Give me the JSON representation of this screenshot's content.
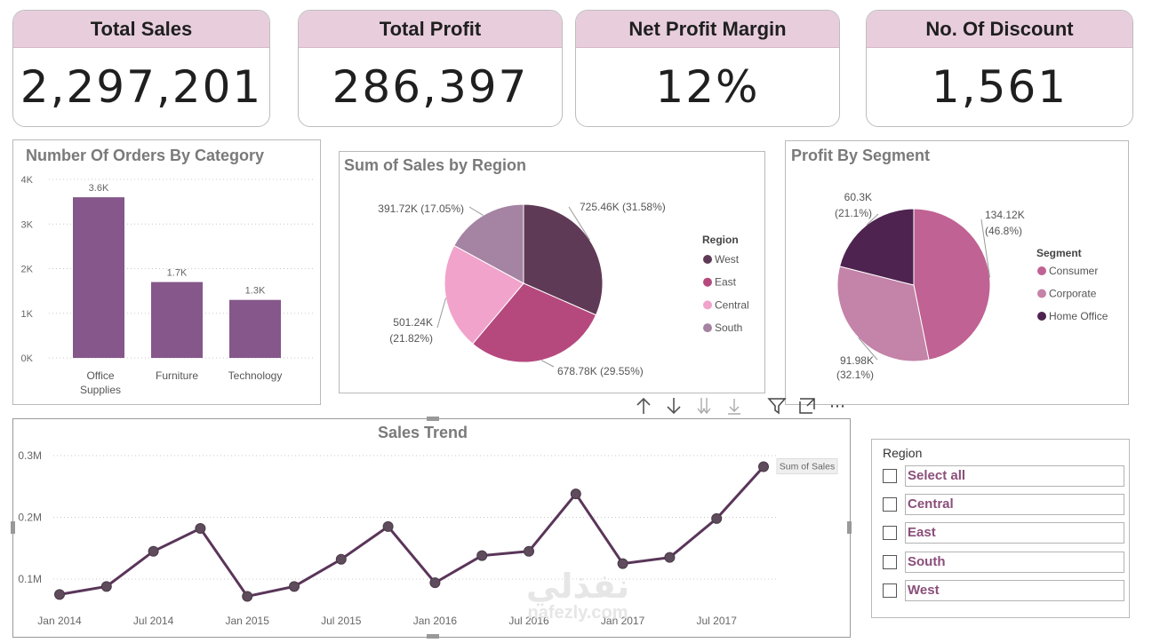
{
  "kpis": [
    {
      "title": "Total Sales",
      "value": "2,297,201"
    },
    {
      "title": "Total Profit",
      "value": "286,397"
    },
    {
      "title": "Net Profit Margin",
      "value": "12%"
    },
    {
      "title": "No. Of Discount",
      "value": "1,561"
    }
  ],
  "orders_panel": {
    "title": "Number Of Orders By Category"
  },
  "sales_region_panel": {
    "title": "Sum of Sales by Region",
    "legend_title": "Region"
  },
  "profit_segment_panel": {
    "title": "Profit By Segment",
    "legend_title": "Segment"
  },
  "trend_panel": {
    "title": "Sales Trend",
    "tooltip": "Sum of Sales"
  },
  "slicer": {
    "title": "Region",
    "items": [
      "Select all",
      "Central",
      "East",
      "South",
      "West"
    ]
  },
  "toolbar": {
    "icons": [
      "arrow-up-icon",
      "arrow-down-icon",
      "double-arrow-down-icon",
      "expand-down-icon",
      "filter-icon",
      "focus-mode-icon",
      "more-options-icon"
    ],
    "more_glyph": "⋯"
  },
  "watermark": {
    "line1": "نفذلي",
    "line2": "nafezly.com"
  },
  "colors": {
    "accent": "#85578a",
    "kpi_header": "#e8cedd",
    "west": "#5f3a56",
    "east": "#b5497e",
    "central": "#f1a3cb",
    "south": "#a583a3",
    "consumer": "#c06293",
    "corporate": "#c483a8",
    "home_office": "#4e2350",
    "line": "#5a3559"
  },
  "chart_data": [
    {
      "type": "bar",
      "title": "Number Of Orders By Category",
      "categories": [
        "Office Supplies",
        "Furniture",
        "Technology"
      ],
      "category_lines": [
        [
          "Office",
          "Supplies"
        ],
        [
          "Furniture"
        ],
        [
          "Technology"
        ]
      ],
      "values": [
        3.6,
        1.7,
        1.3
      ],
      "data_labels": [
        "3.6K",
        "1.7K",
        "1.3K"
      ],
      "y_ticks": [
        "0K",
        "1K",
        "2K",
        "3K",
        "4K"
      ],
      "ylim": [
        0,
        4
      ],
      "grid": true
    },
    {
      "type": "pie",
      "title": "Sum of Sales by Region",
      "legend_title": "Region",
      "legend_position": "right",
      "slices": [
        {
          "name": "West",
          "value": 725.46,
          "percent": 31.58,
          "label": "725.46K (31.58%)",
          "color": "#5f3a56"
        },
        {
          "name": "East",
          "value": 678.78,
          "percent": 29.55,
          "label": "678.78K (29.55%)",
          "color": "#b5497e"
        },
        {
          "name": "Central",
          "value": 501.24,
          "percent": 21.82,
          "label_lines": [
            "501.24K",
            "(21.82%)"
          ],
          "color": "#f1a3cb"
        },
        {
          "name": "South",
          "value": 391.72,
          "percent": 17.05,
          "label": "391.72K (17.05%)",
          "color": "#a583a3"
        }
      ]
    },
    {
      "type": "pie",
      "title": "Profit By Segment",
      "legend_title": "Segment",
      "legend_position": "right",
      "slices": [
        {
          "name": "Consumer",
          "value": 134.12,
          "percent": 46.8,
          "label_lines": [
            "134.12K",
            "(46.8%)"
          ],
          "color": "#c06293"
        },
        {
          "name": "Corporate",
          "value": 91.98,
          "percent": 32.1,
          "label_lines": [
            "91.98K",
            "(32.1%)"
          ],
          "color": "#c483a8"
        },
        {
          "name": "Home Office",
          "value": 60.3,
          "percent": 21.1,
          "label_lines": [
            "60.3K",
            "(21.1%)"
          ],
          "color": "#4e2350"
        }
      ]
    },
    {
      "type": "line",
      "title": "Sales Trend",
      "series": [
        {
          "name": "Sum of Sales",
          "values": [
            0.075,
            0.088,
            0.145,
            0.182,
            0.072,
            0.088,
            0.132,
            0.185,
            0.094,
            0.138,
            0.145,
            0.238,
            0.125,
            0.135,
            0.198,
            0.282
          ]
        }
      ],
      "x_ticks": [
        {
          "label": "Jan 2014",
          "at": 0
        },
        {
          "label": "Jul 2014",
          "at": 2
        },
        {
          "label": "Jan 2015",
          "at": 4
        },
        {
          "label": "Jul 2015",
          "at": 6
        },
        {
          "label": "Jan 2016",
          "at": 8
        },
        {
          "label": "Jul 2016",
          "at": 10
        },
        {
          "label": "Jan 2017",
          "at": 12
        },
        {
          "label": "Jul 2017",
          "at": 14
        }
      ],
      "y_ticks": [
        {
          "label": "0.1M",
          "v": 0.1
        },
        {
          "label": "0.2M",
          "v": 0.2
        },
        {
          "label": "0.3M",
          "v": 0.3
        }
      ],
      "ylim": [
        0.06,
        0.3
      ],
      "grid": true
    }
  ]
}
